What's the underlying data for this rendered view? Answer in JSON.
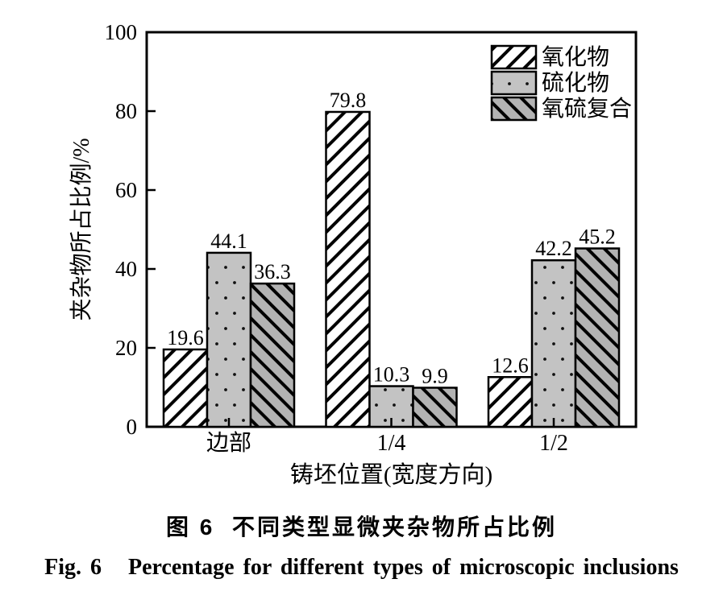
{
  "figure": {
    "caption_cn": "图 6  不同类型显微夹杂物所占比例",
    "caption_en": "Fig. 6   Percentage for different types of microscopic inclusions"
  },
  "chart_data": {
    "type": "bar",
    "categories": [
      "边部",
      "1/4",
      "1/2"
    ],
    "series": [
      {
        "name": "氧化物",
        "pattern": "diagonal-forward-hatch",
        "fill": "#ffffff",
        "hatch_color": "#000000",
        "values": [
          19.6,
          79.8,
          12.6
        ]
      },
      {
        "name": "硫化物",
        "pattern": "dots",
        "fill": "#c3c3c3",
        "hatch_color": "#111111",
        "values": [
          44.1,
          10.3,
          42.2
        ]
      },
      {
        "name": "氧硫复合",
        "pattern": "diagonal-back-hatch",
        "fill": "#b3b3b3",
        "hatch_color": "#000000",
        "values": [
          36.3,
          9.9,
          45.2
        ]
      }
    ],
    "title": "",
    "xlabel": "铸坯位置(宽度方向)",
    "ylabel": "夹杂物所占比例/%",
    "ylim": [
      0,
      100
    ],
    "yticks": [
      0,
      20,
      40,
      60,
      80,
      100
    ],
    "grid": false,
    "legend_position": "top-right-inside",
    "bar_labels": true,
    "axis_color": "#000000"
  }
}
